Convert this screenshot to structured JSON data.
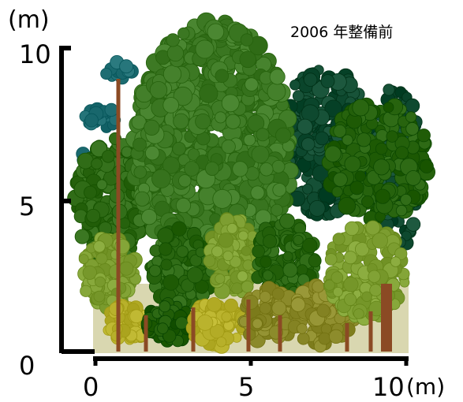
{
  "title": "2006 年整備前",
  "y_axis": {
    "unit": "(m)",
    "ticks": [
      "10",
      "5",
      "0"
    ]
  },
  "x_axis": {
    "unit": "(m)",
    "ticks": [
      "0",
      "5",
      "10"
    ]
  },
  "colors": {
    "ground": "#d9d7b0",
    "trunk": "#8b4a24",
    "dark_green": "#0f4a30",
    "mid_green": "#3e7a25",
    "light_green": "#7fa033",
    "olive": "#8b8a2a",
    "yellow_green": "#b9b22c",
    "teal_canopy": "#1f6e73"
  },
  "trees": [
    {
      "id": "pine-left",
      "crown": "teal-dark-green"
    },
    {
      "id": "large-central-tree",
      "crown": "mid-green"
    },
    {
      "id": "dark-evergreen-right",
      "crown": "dark-green"
    },
    {
      "id": "right-tall-tree",
      "crown": "mid-green"
    },
    {
      "id": "understory-left",
      "crown": "light-green"
    },
    {
      "id": "understory-yellow",
      "crown": "yellow-green"
    },
    {
      "id": "understory-olive",
      "crown": "olive"
    },
    {
      "id": "right-small-tree",
      "crown": "light-green"
    }
  ]
}
